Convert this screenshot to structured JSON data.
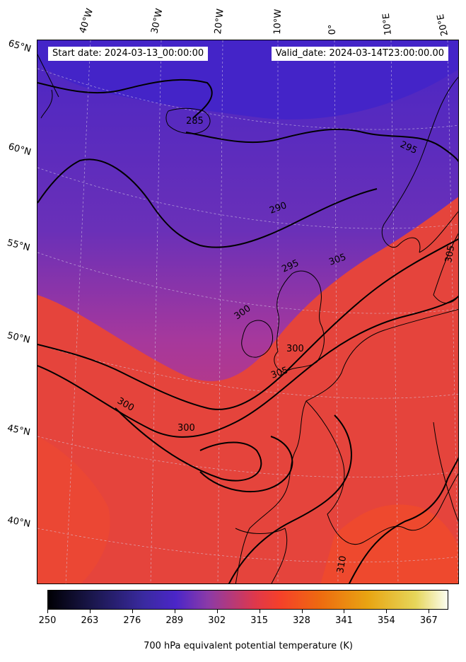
{
  "info": {
    "start_date": "Start date: 2024-03-13_00:00:00",
    "valid_date": "Valid_date: 2024-03-14T23:00:00.00"
  },
  "longitude_labels": [
    "40°W",
    "30°W",
    "20°W",
    "10°W",
    "0°",
    "10°E",
    "20°E"
  ],
  "latitude_labels": [
    "65°N",
    "60°N",
    "55°N",
    "50°N",
    "45°N",
    "40°N"
  ],
  "contour_labels": [
    "285",
    "290",
    "295",
    "295",
    "300",
    "300",
    "300",
    "300",
    "305",
    "305",
    "305",
    "310"
  ],
  "colorbar": {
    "ticks": [
      "250",
      "263",
      "276",
      "289",
      "302",
      "315",
      "328",
      "341",
      "354",
      "367"
    ],
    "label": "700 hPa equivalent potential temperature (K)",
    "min": 250,
    "max": 373,
    "colors": [
      "#000004",
      "#3a2aa0",
      "#4b26c8",
      "#e0384a",
      "#f5402a",
      "#ee6a10",
      "#e8a412",
      "#fcfdf0"
    ]
  }
}
